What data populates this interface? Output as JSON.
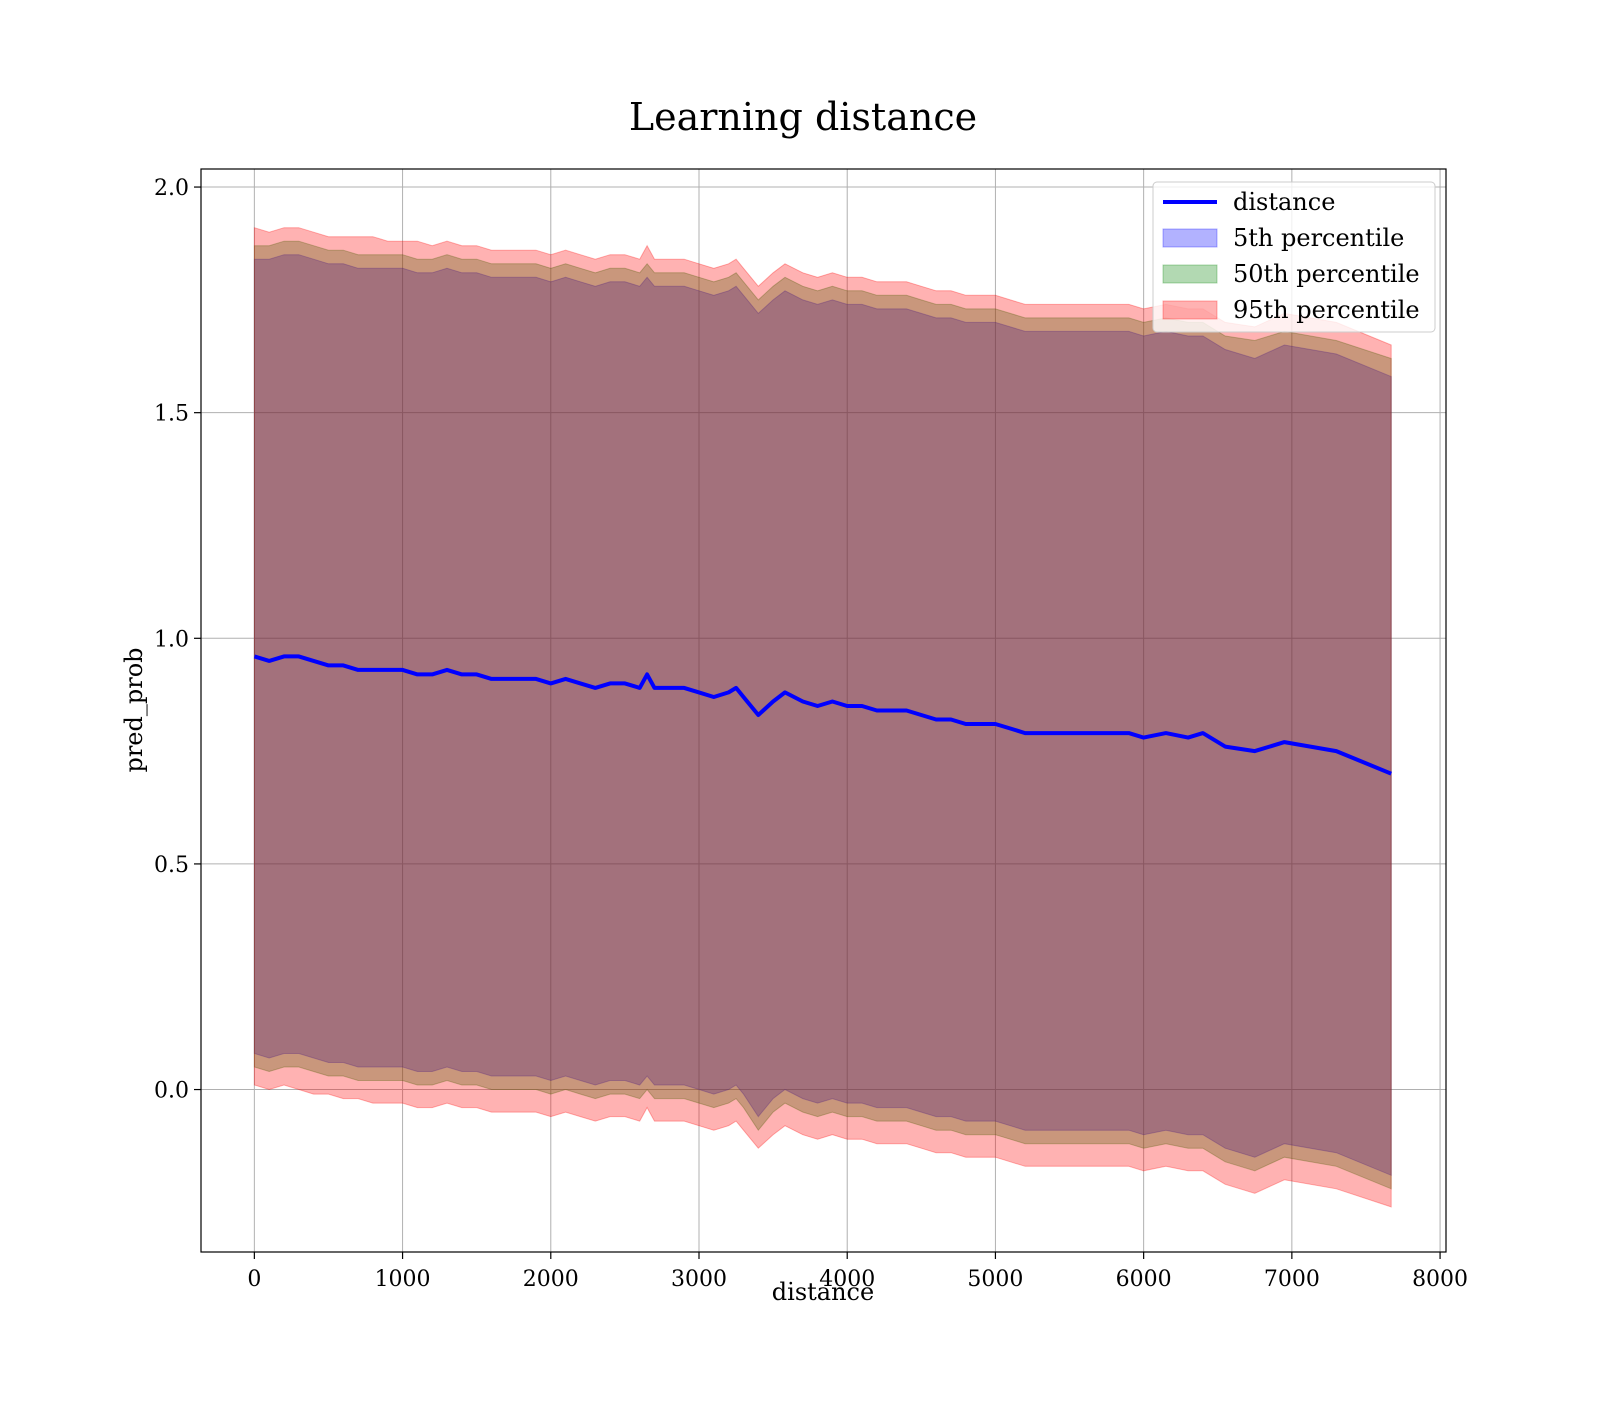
{
  "chart_data": {
    "type": "area",
    "title": "Learning distance",
    "xlabel": "distance",
    "ylabel": "pred_prob",
    "xlim": [
      -360,
      8040
    ],
    "ylim": [
      -0.36,
      2.04
    ],
    "xticks": [
      0,
      1000,
      2000,
      3000,
      4000,
      5000,
      6000,
      7000,
      8000
    ],
    "xtick_labels": [
      "0",
      "1000",
      "2000",
      "3000",
      "4000",
      "5000",
      "6000",
      "7000",
      "8000"
    ],
    "yticks": [
      0.0,
      0.5,
      1.0,
      1.5,
      2.0
    ],
    "ytick_labels": [
      "0.0",
      "0.5",
      "1.0",
      "1.5",
      "2.0"
    ],
    "grid": true,
    "legend_position": "top-right",
    "x": [
      0,
      100,
      200,
      300,
      400,
      500,
      600,
      700,
      800,
      900,
      1000,
      1100,
      1200,
      1300,
      1400,
      1500,
      1600,
      1700,
      1800,
      1900,
      2000,
      2100,
      2200,
      2300,
      2400,
      2500,
      2600,
      2650,
      2700,
      2800,
      2900,
      3000,
      3100,
      3200,
      3250,
      3300,
      3400,
      3500,
      3580,
      3700,
      3800,
      3900,
      4000,
      4100,
      4200,
      4300,
      4400,
      4500,
      4600,
      4700,
      4800,
      4900,
      5000,
      5100,
      5200,
      5300,
      5400,
      5500,
      5600,
      5700,
      5800,
      5900,
      6000,
      6150,
      6300,
      6400,
      6550,
      6750,
      6950,
      7300,
      7670
    ],
    "series": [
      {
        "name": "distance",
        "kind": "line",
        "color": "#0000ff",
        "values": [
          0.96,
          0.95,
          0.96,
          0.96,
          0.95,
          0.94,
          0.94,
          0.93,
          0.93,
          0.93,
          0.93,
          0.92,
          0.92,
          0.93,
          0.92,
          0.92,
          0.91,
          0.91,
          0.91,
          0.91,
          0.9,
          0.91,
          0.9,
          0.89,
          0.9,
          0.9,
          0.89,
          0.92,
          0.89,
          0.89,
          0.89,
          0.88,
          0.87,
          0.88,
          0.89,
          0.87,
          0.83,
          0.86,
          0.88,
          0.86,
          0.85,
          0.86,
          0.85,
          0.85,
          0.84,
          0.84,
          0.84,
          0.83,
          0.82,
          0.82,
          0.81,
          0.81,
          0.81,
          0.8,
          0.79,
          0.79,
          0.79,
          0.79,
          0.79,
          0.79,
          0.79,
          0.79,
          0.78,
          0.79,
          0.78,
          0.79,
          0.76,
          0.75,
          0.77,
          0.75,
          0.7
        ]
      },
      {
        "name": "5th percentile",
        "kind": "band",
        "color": "#0000ff",
        "upper": [
          1.84,
          1.84,
          1.85,
          1.85,
          1.84,
          1.83,
          1.83,
          1.82,
          1.82,
          1.82,
          1.82,
          1.81,
          1.81,
          1.82,
          1.81,
          1.81,
          1.8,
          1.8,
          1.8,
          1.8,
          1.79,
          1.8,
          1.79,
          1.78,
          1.79,
          1.79,
          1.78,
          1.8,
          1.78,
          1.78,
          1.78,
          1.77,
          1.76,
          1.77,
          1.78,
          1.76,
          1.72,
          1.75,
          1.77,
          1.75,
          1.74,
          1.75,
          1.74,
          1.74,
          1.73,
          1.73,
          1.73,
          1.72,
          1.71,
          1.71,
          1.7,
          1.7,
          1.7,
          1.69,
          1.68,
          1.68,
          1.68,
          1.68,
          1.68,
          1.68,
          1.68,
          1.68,
          1.67,
          1.68,
          1.67,
          1.67,
          1.64,
          1.62,
          1.65,
          1.63,
          1.58
        ],
        "lower": [
          0.08,
          0.07,
          0.08,
          0.08,
          0.07,
          0.06,
          0.06,
          0.05,
          0.05,
          0.05,
          0.05,
          0.04,
          0.04,
          0.05,
          0.04,
          0.04,
          0.03,
          0.03,
          0.03,
          0.03,
          0.02,
          0.03,
          0.02,
          0.01,
          0.02,
          0.02,
          0.01,
          0.03,
          0.01,
          0.01,
          0.01,
          0.0,
          -0.01,
          0.0,
          0.01,
          -0.01,
          -0.06,
          -0.02,
          0.0,
          -0.02,
          -0.03,
          -0.02,
          -0.03,
          -0.03,
          -0.04,
          -0.04,
          -0.04,
          -0.05,
          -0.06,
          -0.06,
          -0.07,
          -0.07,
          -0.07,
          -0.08,
          -0.09,
          -0.09,
          -0.09,
          -0.09,
          -0.09,
          -0.09,
          -0.09,
          -0.09,
          -0.1,
          -0.09,
          -0.1,
          -0.1,
          -0.13,
          -0.15,
          -0.12,
          -0.14,
          -0.19
        ]
      },
      {
        "name": "50th percentile",
        "kind": "band",
        "color": "#008000",
        "upper": [
          1.87,
          1.87,
          1.88,
          1.88,
          1.87,
          1.86,
          1.86,
          1.85,
          1.85,
          1.85,
          1.85,
          1.84,
          1.84,
          1.85,
          1.84,
          1.84,
          1.83,
          1.83,
          1.83,
          1.83,
          1.82,
          1.83,
          1.82,
          1.81,
          1.82,
          1.82,
          1.81,
          1.83,
          1.81,
          1.81,
          1.81,
          1.8,
          1.79,
          1.8,
          1.81,
          1.79,
          1.75,
          1.78,
          1.8,
          1.78,
          1.77,
          1.78,
          1.77,
          1.77,
          1.76,
          1.76,
          1.76,
          1.75,
          1.74,
          1.74,
          1.73,
          1.73,
          1.73,
          1.72,
          1.71,
          1.71,
          1.71,
          1.71,
          1.71,
          1.71,
          1.71,
          1.71,
          1.7,
          1.71,
          1.7,
          1.7,
          1.67,
          1.66,
          1.68,
          1.66,
          1.62
        ],
        "lower": [
          0.05,
          0.04,
          0.05,
          0.05,
          0.04,
          0.03,
          0.03,
          0.02,
          0.02,
          0.02,
          0.02,
          0.01,
          0.01,
          0.02,
          0.01,
          0.01,
          0.0,
          0.0,
          0.0,
          0.0,
          -0.01,
          0.0,
          -0.01,
          -0.02,
          -0.01,
          -0.01,
          -0.02,
          0.0,
          -0.02,
          -0.02,
          -0.02,
          -0.03,
          -0.04,
          -0.03,
          -0.02,
          -0.04,
          -0.09,
          -0.05,
          -0.03,
          -0.05,
          -0.06,
          -0.05,
          -0.06,
          -0.06,
          -0.07,
          -0.07,
          -0.07,
          -0.08,
          -0.09,
          -0.09,
          -0.1,
          -0.1,
          -0.1,
          -0.11,
          -0.12,
          -0.12,
          -0.12,
          -0.12,
          -0.12,
          -0.12,
          -0.12,
          -0.12,
          -0.13,
          -0.12,
          -0.13,
          -0.13,
          -0.16,
          -0.18,
          -0.15,
          -0.17,
          -0.22
        ]
      },
      {
        "name": "95th percentile",
        "kind": "band",
        "color": "#ff0000",
        "upper": [
          1.91,
          1.9,
          1.91,
          1.91,
          1.9,
          1.89,
          1.89,
          1.89,
          1.89,
          1.88,
          1.88,
          1.88,
          1.87,
          1.88,
          1.87,
          1.87,
          1.86,
          1.86,
          1.86,
          1.86,
          1.85,
          1.86,
          1.85,
          1.84,
          1.85,
          1.85,
          1.84,
          1.87,
          1.84,
          1.84,
          1.84,
          1.83,
          1.82,
          1.83,
          1.84,
          1.82,
          1.78,
          1.81,
          1.83,
          1.81,
          1.8,
          1.81,
          1.8,
          1.8,
          1.79,
          1.79,
          1.79,
          1.78,
          1.77,
          1.77,
          1.76,
          1.76,
          1.76,
          1.75,
          1.74,
          1.74,
          1.74,
          1.74,
          1.74,
          1.74,
          1.74,
          1.74,
          1.73,
          1.74,
          1.73,
          1.73,
          1.7,
          1.69,
          1.72,
          1.7,
          1.65
        ],
        "lower": [
          0.01,
          0.0,
          0.01,
          0.0,
          -0.01,
          -0.01,
          -0.02,
          -0.02,
          -0.03,
          -0.03,
          -0.03,
          -0.04,
          -0.04,
          -0.03,
          -0.04,
          -0.04,
          -0.05,
          -0.05,
          -0.05,
          -0.05,
          -0.06,
          -0.05,
          -0.06,
          -0.07,
          -0.06,
          -0.06,
          -0.07,
          -0.04,
          -0.07,
          -0.07,
          -0.07,
          -0.08,
          -0.09,
          -0.08,
          -0.07,
          -0.09,
          -0.13,
          -0.1,
          -0.08,
          -0.1,
          -0.11,
          -0.1,
          -0.11,
          -0.11,
          -0.12,
          -0.12,
          -0.12,
          -0.13,
          -0.14,
          -0.14,
          -0.15,
          -0.15,
          -0.15,
          -0.16,
          -0.17,
          -0.17,
          -0.17,
          -0.17,
          -0.17,
          -0.17,
          -0.17,
          -0.17,
          -0.18,
          -0.17,
          -0.18,
          -0.18,
          -0.21,
          -0.23,
          -0.2,
          -0.22,
          -0.26
        ]
      }
    ]
  }
}
